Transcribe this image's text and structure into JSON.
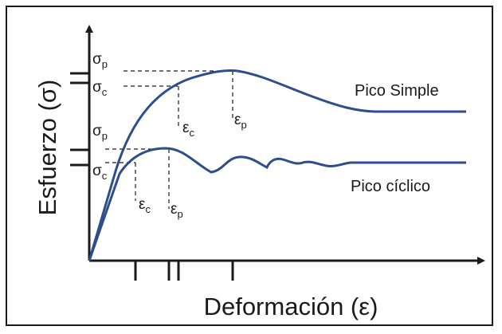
{
  "figure": {
    "y_axis_title": "Esfuerzo (σ)",
    "x_axis_title": "Deformación (ε)",
    "curve_colour": "#2d4e8a",
    "axis_colour": "#1a1a1a",
    "curves": [
      {
        "name": "Pico Simple",
        "stress_peak": {
          "symbol": "σ",
          "subscript": "p"
        },
        "stress_critical": {
          "symbol": "σ",
          "subscript": "c"
        },
        "strain_critical": {
          "symbol": "ε",
          "subscript": "c"
        },
        "strain_peak": {
          "symbol": "ε",
          "subscript": "p"
        }
      },
      {
        "name": "Pico cíclico",
        "stress_peak": {
          "symbol": "σ",
          "subscript": "p"
        },
        "stress_critical": {
          "symbol": "σ",
          "subscript": "c"
        },
        "strain_critical": {
          "symbol": "ε",
          "subscript": "c"
        },
        "strain_peak": {
          "symbol": "ε",
          "subscript": "p"
        }
      }
    ]
  }
}
